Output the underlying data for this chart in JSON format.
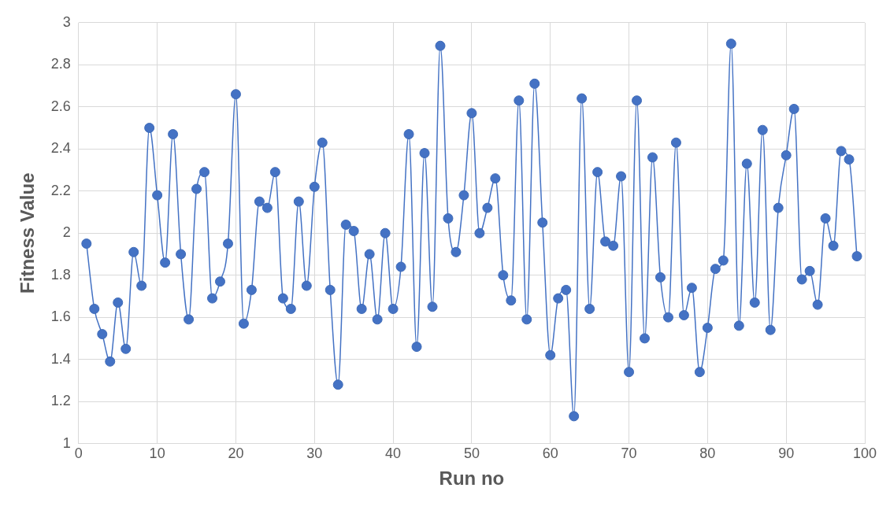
{
  "chart_data": {
    "type": "line",
    "xlabel": "Run no",
    "ylabel": "Fitness Value",
    "x": [
      1,
      2,
      3,
      4,
      5,
      6,
      7,
      8,
      9,
      10,
      11,
      12,
      13,
      14,
      15,
      16,
      17,
      18,
      19,
      20,
      21,
      22,
      23,
      24,
      25,
      26,
      27,
      28,
      29,
      30,
      31,
      32,
      33,
      34,
      35,
      36,
      37,
      38,
      39,
      40,
      41,
      42,
      43,
      44,
      45,
      46,
      47,
      48,
      49,
      50,
      51,
      52,
      53,
      54,
      55,
      56,
      57,
      58,
      59,
      60,
      61,
      62,
      63,
      64,
      65,
      66,
      67,
      68,
      69,
      70,
      71,
      72,
      73,
      74,
      75,
      76,
      77,
      78,
      79,
      80,
      81,
      82,
      83,
      84,
      85,
      86,
      87,
      88,
      89,
      90,
      91,
      92,
      93,
      94,
      95,
      96,
      97,
      98,
      99
    ],
    "series": [
      {
        "color": "#4472c4",
        "values": [
          1.95,
          1.64,
          1.52,
          1.39,
          1.67,
          1.45,
          1.91,
          1.75,
          2.5,
          2.18,
          1.86,
          2.47,
          1.9,
          1.59,
          2.21,
          2.29,
          1.69,
          1.77,
          1.95,
          2.66,
          1.57,
          1.73,
          2.15,
          2.12,
          2.29,
          1.69,
          1.64,
          2.15,
          1.75,
          2.22,
          2.43,
          1.73,
          1.28,
          2.04,
          2.01,
          1.64,
          1.9,
          1.59,
          2.0,
          1.64,
          1.84,
          2.47,
          1.46,
          2.38,
          1.65,
          2.89,
          2.07,
          1.91,
          2.18,
          2.57,
          2.0,
          2.12,
          2.26,
          1.8,
          1.68,
          2.63,
          1.59,
          2.71,
          2.05,
          1.42,
          1.69,
          1.73,
          1.13,
          2.64,
          1.64,
          2.29,
          1.96,
          1.94,
          2.27,
          1.34,
          2.63,
          1.5,
          2.36,
          1.79,
          1.6,
          2.43,
          1.61,
          1.74,
          1.34,
          1.55,
          1.83,
          1.87,
          2.9,
          1.56,
          2.33,
          1.67,
          2.49,
          1.54,
          2.12,
          2.37,
          2.59,
          1.78,
          1.82,
          1.66,
          2.07,
          1.94,
          2.39,
          2.35,
          1.89
        ]
      }
    ],
    "xlim": [
      0,
      100
    ],
    "xticks": [
      0,
      10,
      20,
      30,
      40,
      50,
      60,
      70,
      80,
      90,
      100
    ],
    "ylim": [
      1,
      3
    ],
    "yticks": [
      1,
      1.2,
      1.4,
      1.6,
      1.8,
      2,
      2.2,
      2.4,
      2.6,
      2.8,
      3
    ],
    "grid": true,
    "marker": "circle",
    "line_style": "solid"
  }
}
